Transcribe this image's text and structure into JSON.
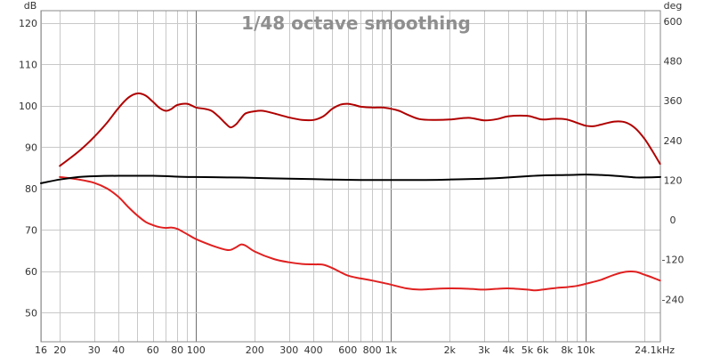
{
  "chart_data": {
    "type": "line",
    "title": "1/48 octave smoothing",
    "x_scale": "log",
    "xlim": [
      16,
      24100
    ],
    "x_ticks": [
      {
        "value": 16,
        "label": "16"
      },
      {
        "value": 20,
        "label": "20"
      },
      {
        "value": 30,
        "label": "30"
      },
      {
        "value": 40,
        "label": "40"
      },
      {
        "value": 60,
        "label": "60"
      },
      {
        "value": 80,
        "label": "80"
      },
      {
        "value": 100,
        "label": "100"
      },
      {
        "value": 200,
        "label": "200"
      },
      {
        "value": 300,
        "label": "300"
      },
      {
        "value": 400,
        "label": "400"
      },
      {
        "value": 600,
        "label": "600"
      },
      {
        "value": 800,
        "label": "800"
      },
      {
        "value": 1000,
        "label": "1k"
      },
      {
        "value": 2000,
        "label": "2k"
      },
      {
        "value": 3000,
        "label": "3k"
      },
      {
        "value": 4000,
        "label": "4k"
      },
      {
        "value": 5000,
        "label": "5k"
      },
      {
        "value": 6000,
        "label": "6k"
      },
      {
        "value": 8000,
        "label": "8k"
      },
      {
        "value": 10000,
        "label": "10k"
      },
      {
        "value": 24100,
        "label": "24.1kHz"
      }
    ],
    "x_grid_values": [
      16,
      20,
      30,
      40,
      50,
      60,
      70,
      80,
      90,
      100,
      200,
      300,
      400,
      500,
      600,
      700,
      800,
      900,
      1000,
      2000,
      3000,
      4000,
      5000,
      6000,
      7000,
      8000,
      9000,
      10000,
      20000
    ],
    "x_major_lines": [
      100,
      1000,
      10000
    ],
    "y_left": {
      "unit": "dB",
      "lim": [
        43,
        123
      ],
      "ticks": [
        120,
        110,
        100,
        90,
        80,
        70,
        60,
        50
      ]
    },
    "y_right": {
      "unit": "deg",
      "lim": [
        -368,
        632
      ],
      "ticks": [
        600,
        480,
        360,
        240,
        120,
        0,
        -120,
        -240
      ]
    },
    "grid": true,
    "series": [
      {
        "axis": "left",
        "color": "#b00000",
        "points": [
          [
            20,
            85.5
          ],
          [
            25,
            89
          ],
          [
            30,
            92.5
          ],
          [
            35,
            96
          ],
          [
            40,
            99.5
          ],
          [
            45,
            102
          ],
          [
            50,
            103
          ],
          [
            55,
            102.5
          ],
          [
            60,
            101
          ],
          [
            65,
            99.5
          ],
          [
            70,
            98.8
          ],
          [
            75,
            99.3
          ],
          [
            80,
            100.2
          ],
          [
            90,
            100.5
          ],
          [
            100,
            99.6
          ],
          [
            110,
            99.3
          ],
          [
            120,
            98.8
          ],
          [
            130,
            97.5
          ],
          [
            140,
            96
          ],
          [
            150,
            94.8
          ],
          [
            160,
            95.5
          ],
          [
            170,
            97
          ],
          [
            180,
            98.2
          ],
          [
            200,
            98.7
          ],
          [
            220,
            98.8
          ],
          [
            250,
            98.2
          ],
          [
            300,
            97.2
          ],
          [
            350,
            96.6
          ],
          [
            400,
            96.6
          ],
          [
            450,
            97.5
          ],
          [
            500,
            99.3
          ],
          [
            550,
            100.3
          ],
          [
            600,
            100.5
          ],
          [
            650,
            100.2
          ],
          [
            700,
            99.8
          ],
          [
            800,
            99.6
          ],
          [
            900,
            99.6
          ],
          [
            1000,
            99.3
          ],
          [
            1100,
            98.8
          ],
          [
            1200,
            98
          ],
          [
            1400,
            96.8
          ],
          [
            1700,
            96.6
          ],
          [
            2000,
            96.7
          ],
          [
            2500,
            97.1
          ],
          [
            3000,
            96.5
          ],
          [
            3500,
            96.8
          ],
          [
            4000,
            97.5
          ],
          [
            5000,
            97.6
          ],
          [
            5500,
            97.1
          ],
          [
            6000,
            96.7
          ],
          [
            7000,
            96.9
          ],
          [
            8000,
            96.7
          ],
          [
            9000,
            95.9
          ],
          [
            10000,
            95.2
          ],
          [
            11000,
            95.1
          ],
          [
            12000,
            95.5
          ],
          [
            14000,
            96.2
          ],
          [
            16000,
            96
          ],
          [
            18000,
            94.5
          ],
          [
            20000,
            92
          ],
          [
            22000,
            89
          ],
          [
            24000,
            86
          ]
        ]
      },
      {
        "axis": "left",
        "color": "#e02020",
        "points": [
          [
            20,
            82.8
          ],
          [
            25,
            82.2
          ],
          [
            30,
            81.4
          ],
          [
            35,
            80
          ],
          [
            40,
            78
          ],
          [
            45,
            75.5
          ],
          [
            50,
            73.5
          ],
          [
            55,
            72
          ],
          [
            60,
            71.2
          ],
          [
            65,
            70.7
          ],
          [
            70,
            70.5
          ],
          [
            75,
            70.6
          ],
          [
            80,
            70.3
          ],
          [
            90,
            69
          ],
          [
            100,
            67.8
          ],
          [
            120,
            66.3
          ],
          [
            140,
            65.3
          ],
          [
            150,
            65.2
          ],
          [
            160,
            65.8
          ],
          [
            170,
            66.5
          ],
          [
            180,
            66.2
          ],
          [
            200,
            64.8
          ],
          [
            250,
            63
          ],
          [
            300,
            62.2
          ],
          [
            350,
            61.8
          ],
          [
            400,
            61.7
          ],
          [
            450,
            61.6
          ],
          [
            500,
            60.8
          ],
          [
            600,
            59
          ],
          [
            700,
            58.3
          ],
          [
            800,
            57.8
          ],
          [
            1000,
            56.8
          ],
          [
            1200,
            55.9
          ],
          [
            1400,
            55.6
          ],
          [
            1700,
            55.8
          ],
          [
            2000,
            55.9
          ],
          [
            2500,
            55.8
          ],
          [
            3000,
            55.6
          ],
          [
            3500,
            55.8
          ],
          [
            4000,
            55.9
          ],
          [
            5000,
            55.6
          ],
          [
            5500,
            55.4
          ],
          [
            6000,
            55.6
          ],
          [
            7000,
            56
          ],
          [
            8000,
            56.2
          ],
          [
            9000,
            56.5
          ],
          [
            10000,
            57
          ],
          [
            12000,
            58
          ],
          [
            14000,
            59.2
          ],
          [
            16000,
            59.9
          ],
          [
            18000,
            59.9
          ],
          [
            20000,
            59.2
          ],
          [
            22000,
            58.5
          ],
          [
            24000,
            57.8
          ]
        ]
      },
      {
        "axis": "left",
        "color": "#000000",
        "points": [
          [
            16,
            81.3
          ],
          [
            20,
            82.2
          ],
          [
            25,
            82.8
          ],
          [
            30,
            83
          ],
          [
            40,
            83.1
          ],
          [
            60,
            83.1
          ],
          [
            80,
            82.9
          ],
          [
            100,
            82.8
          ],
          [
            150,
            82.7
          ],
          [
            200,
            82.6
          ],
          [
            300,
            82.4
          ],
          [
            400,
            82.3
          ],
          [
            500,
            82.2
          ],
          [
            700,
            82.1
          ],
          [
            1000,
            82.1
          ],
          [
            1500,
            82.1
          ],
          [
            2000,
            82.2
          ],
          [
            3000,
            82.4
          ],
          [
            4000,
            82.7
          ],
          [
            5000,
            83
          ],
          [
            6000,
            83.2
          ],
          [
            8000,
            83.3
          ],
          [
            10000,
            83.4
          ],
          [
            12000,
            83.3
          ],
          [
            14000,
            83.1
          ],
          [
            16000,
            82.9
          ],
          [
            18000,
            82.7
          ],
          [
            20000,
            82.7
          ],
          [
            24100,
            82.8
          ]
        ]
      }
    ]
  }
}
